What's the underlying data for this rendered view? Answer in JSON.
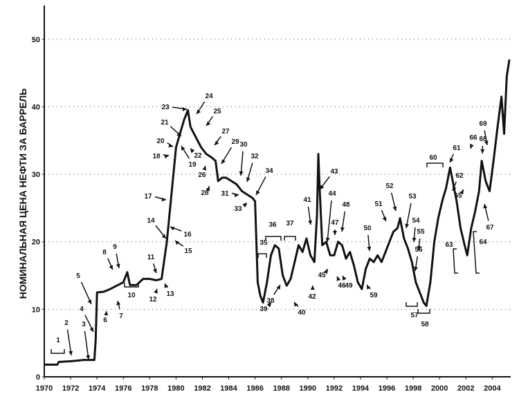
{
  "chart_data": {
    "type": "line",
    "ylabel": "НОМИНАЛЬНАЯ ЦЕНА НЕФТИ ЗА БАРРЕЛЬ",
    "xlabel": "",
    "title": "",
    "xlim": [
      1970,
      2005.4
    ],
    "ylim": [
      0,
      55
    ],
    "x_ticks": [
      "1970",
      "1972",
      "1974",
      "1976",
      "1978",
      "1980",
      "1982",
      "1984",
      "1986",
      "1988",
      "1990",
      "1992",
      "1994",
      "1996",
      "1998",
      "2000",
      "2002",
      "2004"
    ],
    "y_ticks": [
      "0",
      "10",
      "20",
      "30",
      "40",
      "50"
    ],
    "grid": "dotted horizontal",
    "series": [
      {
        "x": [
          1970.0,
          1971.0,
          1971.1,
          1972.0,
          1973.0,
          1973.8,
          1973.9,
          1974.0,
          1974.5,
          1975.0,
          1975.5,
          1976.0,
          1976.3,
          1976.5,
          1977.0,
          1977.5,
          1978.0,
          1978.5,
          1978.9,
          1979.3,
          1979.7,
          1980.0,
          1980.3,
          1980.6,
          1980.9,
          1981.1,
          1981.5,
          1981.9,
          1982.3,
          1982.7,
          1983.0,
          1983.2,
          1983.5,
          1983.8,
          1984.2,
          1984.6,
          1985.0,
          1985.4,
          1985.8,
          1986.0,
          1986.2,
          1986.4,
          1986.6,
          1986.9,
          1987.2,
          1987.5,
          1987.8,
          1988.1,
          1988.4,
          1988.7,
          1989.0,
          1989.3,
          1989.6,
          1989.9,
          1990.2,
          1990.5,
          1990.7,
          1990.8,
          1990.9,
          1991.1,
          1991.4,
          1991.7,
          1992.0,
          1992.3,
          1992.6,
          1992.9,
          1993.2,
          1993.5,
          1993.8,
          1994.1,
          1994.4,
          1994.7,
          1995.0,
          1995.3,
          1995.6,
          1995.9,
          1996.2,
          1996.5,
          1996.8,
          1997.0,
          1997.3,
          1997.6,
          1997.9,
          1998.2,
          1998.5,
          1998.8,
          1999.0,
          1999.3,
          1999.6,
          1999.9,
          2000.2,
          2000.5,
          2000.8,
          2001.0,
          2001.3,
          2001.6,
          2001.9,
          2002.1,
          2002.4,
          2002.7,
          2003.0,
          2003.2,
          2003.5,
          2003.8,
          2004.1,
          2004.4,
          2004.7,
          2004.9,
          2005.1,
          2005.3
        ],
        "y": [
          1.8,
          1.8,
          2.2,
          2.3,
          2.5,
          2.5,
          5.5,
          12.5,
          12.6,
          13.0,
          13.5,
          14.0,
          15.5,
          13.6,
          13.6,
          14.5,
          14.5,
          14.3,
          14.5,
          20.0,
          28.0,
          34.0,
          36.0,
          38.0,
          39.5,
          37.0,
          35.5,
          34.0,
          33.0,
          32.5,
          32.0,
          29.0,
          29.5,
          29.5,
          29.0,
          28.5,
          27.5,
          27.0,
          26.5,
          26.0,
          14.0,
          12.0,
          11.0,
          14.0,
          18.0,
          19.5,
          19.0,
          15.0,
          13.5,
          14.5,
          17.0,
          19.5,
          18.5,
          20.5,
          18.0,
          17.0,
          24.0,
          33.0,
          28.0,
          19.5,
          20.0,
          18.0,
          18.0,
          20.0,
          19.5,
          17.5,
          18.5,
          16.5,
          14.0,
          13.0,
          16.0,
          17.5,
          17.0,
          18.0,
          17.0,
          18.5,
          20.0,
          21.5,
          22.0,
          23.5,
          20.5,
          19.0,
          17.0,
          14.0,
          12.5,
          11.0,
          10.5,
          14.0,
          20.0,
          23.5,
          26.0,
          28.0,
          31.0,
          29.0,
          26.0,
          22.0,
          19.5,
          18.0,
          22.0,
          24.5,
          27.5,
          32.0,
          29.0,
          27.5,
          32.0,
          37.0,
          41.5,
          36.0,
          44.5,
          47.0
        ]
      }
    ],
    "annotations": [
      "1",
      "2",
      "3",
      "4",
      "5",
      "6",
      "7",
      "8",
      "9",
      "10",
      "11",
      "12",
      "13",
      "14",
      "15",
      "16",
      "17",
      "18",
      "19",
      "20",
      "21",
      "22",
      "23",
      "24",
      "25",
      "26",
      "27",
      "28",
      "29",
      "30",
      "31",
      "32",
      "33",
      "34",
      "35",
      "36",
      "37",
      "38",
      "39",
      "40",
      "41",
      "42",
      "43",
      "44",
      "45",
      "46",
      "47",
      "48",
      "49",
      "50",
      "51",
      "52",
      "53",
      "54",
      "55",
      "56",
      "57",
      "58",
      "59",
      "60",
      "61",
      "62",
      "63",
      "64",
      "65",
      "66",
      "67",
      "68",
      "69"
    ],
    "colors": {
      "line": "#111111",
      "grid": "#555555",
      "text": "#111111"
    }
  }
}
